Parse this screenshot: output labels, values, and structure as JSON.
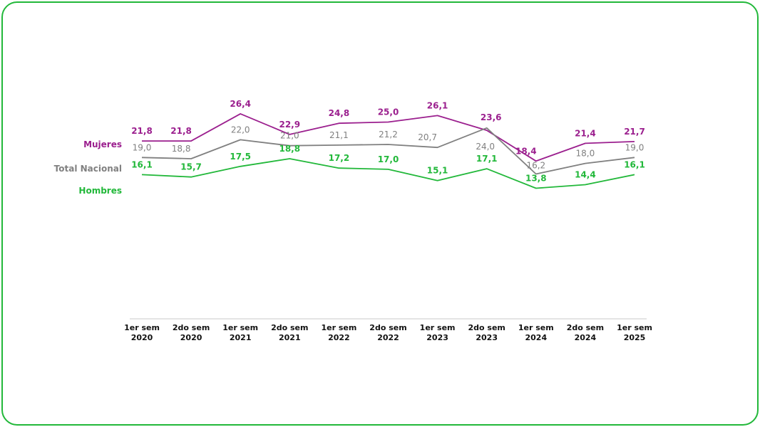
{
  "chart_data": {
    "type": "line",
    "title": "",
    "xlabel": "",
    "ylabel": "",
    "categories": [
      [
        "1er sem",
        "2020"
      ],
      [
        "2do sem",
        "2020"
      ],
      [
        "1er sem",
        "2021"
      ],
      [
        "2do sem",
        "2021"
      ],
      [
        "1er sem",
        "2022"
      ],
      [
        "2do sem",
        "2022"
      ],
      [
        "1er sem",
        "2023"
      ],
      [
        "2do sem",
        "2023"
      ],
      [
        "1er sem",
        "2024"
      ],
      [
        "2do sem",
        "2024"
      ],
      [
        "1er sem",
        "2025"
      ]
    ],
    "series": [
      {
        "name": "Mujeres",
        "color": "#9b1f8e",
        "values": [
          21.8,
          21.8,
          26.4,
          22.9,
          24.8,
          25.0,
          26.1,
          23.6,
          18.4,
          21.4,
          21.7
        ],
        "labels": [
          "21,8",
          "21,8",
          "26,4",
          "22,9",
          "24,8",
          "25,0",
          "26,1",
          "23,6",
          "18,4",
          "21,4",
          "21,7"
        ]
      },
      {
        "name": "Total Nacional",
        "color": "#808080",
        "values": [
          19.0,
          18.8,
          22.0,
          21.0,
          21.1,
          21.2,
          20.7,
          24.0,
          16.2,
          18.0,
          19.0
        ],
        "labels": [
          "19,0",
          "18,8",
          "22,0",
          "21,0",
          "21,1",
          "21,2",
          "20,7",
          "24,0",
          "16,2",
          "18,0",
          "19,0"
        ]
      },
      {
        "name": "Hombres",
        "color": "#22b83a",
        "values": [
          16.1,
          15.7,
          17.5,
          18.8,
          17.2,
          17.0,
          15.1,
          17.1,
          13.8,
          14.4,
          16.1
        ],
        "labels": [
          "16,1",
          "15,7",
          "17,5",
          "18,8",
          "17,2",
          "17,0",
          "15,1",
          "17,1",
          "13,8",
          "14,4",
          "16,1"
        ]
      }
    ],
    "ylim": [
      10,
      30
    ],
    "grid": false,
    "legend": "left"
  }
}
